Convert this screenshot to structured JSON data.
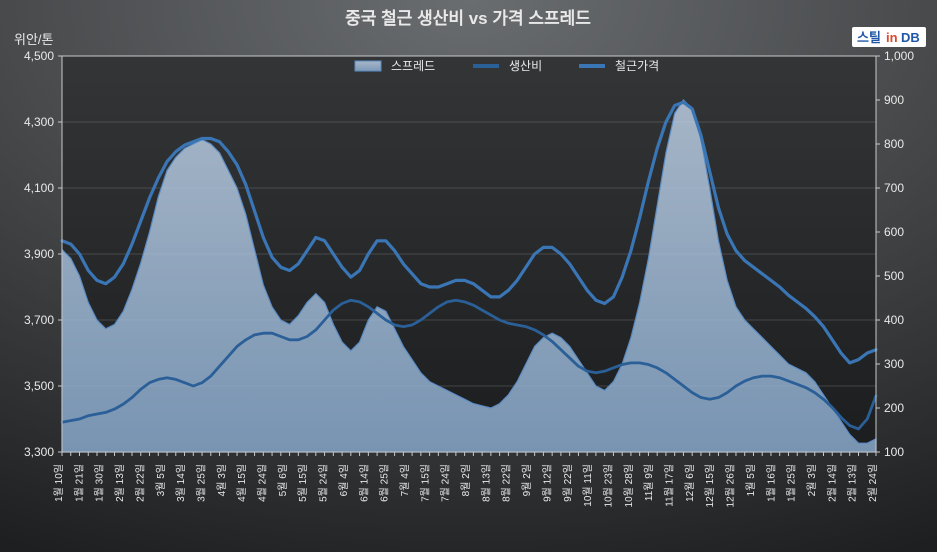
{
  "chart": {
    "type": "combo-area-line-dual-axis",
    "title": "중국 철근 생산비 vs 가격 스프레드",
    "y_left_label": "위안/톤",
    "background": {
      "outer_top": "#6a6d70",
      "outer_bottom": "#1e1f20",
      "plot_top": "#333537",
      "plot_bottom": "#1c1d1e"
    },
    "grid_color": "#9aa0a6",
    "axis_text_color": "#e9e9e9",
    "title_fontsize": 17,
    "tick_fontsize": 12,
    "y_left": {
      "min": 3300,
      "max": 4500,
      "step": 200
    },
    "y_right": {
      "min": 100,
      "max": 1000,
      "step": 100
    },
    "x_labels": [
      "1월 10일",
      "1월 21일",
      "1월 30일",
      "2월 13일",
      "2월 22일",
      "3월 5일",
      "3월 14일",
      "3월 25일",
      "4월 3일",
      "4월 15일",
      "4월 24일",
      "5월 6일",
      "5월 15일",
      "5월 24일",
      "6월 4일",
      "6월 14일",
      "6월 25일",
      "7월 4일",
      "7월 15일",
      "7월 24일",
      "8월 2일",
      "8월 13일",
      "8월 22일",
      "9월 2일",
      "9월 12일",
      "9월 22일",
      "10월 11일",
      "10월 23일",
      "10월 28일",
      "11월 9일",
      "11월 17일",
      "12월 6일",
      "12월 15일",
      "12월 26일",
      "1월 5일",
      "1월 16일",
      "1월 25일",
      "2월 3일",
      "2월 14일",
      "2월 13일",
      "2월 24일"
    ],
    "legend": {
      "items": [
        {
          "key": "spread",
          "label": "스프레드"
        },
        {
          "key": "cost",
          "label": "생산비"
        },
        {
          "key": "price",
          "label": "철근가격"
        }
      ]
    },
    "series": {
      "spread": {
        "type": "area",
        "axis": "right",
        "fill_top": "#c7daf0",
        "fill_bottom": "#92b6dc",
        "fill_opacity": 0.7,
        "stroke": "#5b8cc4",
        "stroke_width": 1.2,
        "data": [
          560,
          540,
          500,
          440,
          400,
          380,
          390,
          420,
          470,
          530,
          600,
          680,
          740,
          770,
          790,
          800,
          810,
          800,
          780,
          740,
          700,
          640,
          560,
          480,
          430,
          400,
          390,
          410,
          440,
          460,
          440,
          390,
          350,
          330,
          350,
          400,
          430,
          420,
          380,
          340,
          310,
          280,
          260,
          250,
          240,
          230,
          220,
          210,
          205,
          200,
          210,
          230,
          260,
          300,
          340,
          360,
          370,
          360,
          340,
          310,
          280,
          250,
          240,
          260,
          300,
          360,
          440,
          540,
          660,
          780,
          870,
          900,
          880,
          810,
          700,
          580,
          490,
          430,
          400,
          380,
          360,
          340,
          320,
          300,
          290,
          280,
          260,
          230,
          200,
          170,
          140,
          120,
          120,
          130
        ]
      },
      "cost": {
        "type": "line",
        "axis": "left",
        "stroke": "#2b5f97",
        "stroke_width": 2.8,
        "data": [
          3390,
          3395,
          3400,
          3410,
          3415,
          3420,
          3430,
          3445,
          3465,
          3490,
          3510,
          3520,
          3525,
          3520,
          3510,
          3500,
          3510,
          3530,
          3560,
          3590,
          3620,
          3640,
          3655,
          3660,
          3660,
          3650,
          3640,
          3640,
          3650,
          3670,
          3700,
          3730,
          3750,
          3760,
          3755,
          3740,
          3720,
          3700,
          3685,
          3680,
          3685,
          3700,
          3720,
          3740,
          3755,
          3760,
          3755,
          3745,
          3730,
          3715,
          3700,
          3690,
          3685,
          3680,
          3670,
          3655,
          3635,
          3610,
          3585,
          3560,
          3545,
          3540,
          3545,
          3555,
          3565,
          3570,
          3570,
          3565,
          3555,
          3540,
          3520,
          3500,
          3480,
          3465,
          3460,
          3465,
          3480,
          3500,
          3515,
          3525,
          3530,
          3530,
          3525,
          3515,
          3505,
          3495,
          3480,
          3460,
          3435,
          3405,
          3380,
          3370,
          3400,
          3470
        ]
      },
      "price": {
        "type": "line",
        "axis": "left",
        "stroke": "#3a76b5",
        "stroke_width": 3.2,
        "data": [
          3940,
          3930,
          3900,
          3850,
          3820,
          3810,
          3830,
          3870,
          3930,
          4000,
          4070,
          4130,
          4180,
          4210,
          4230,
          4240,
          4250,
          4250,
          4240,
          4210,
          4170,
          4110,
          4030,
          3950,
          3890,
          3860,
          3850,
          3870,
          3910,
          3950,
          3940,
          3900,
          3860,
          3830,
          3850,
          3900,
          3940,
          3940,
          3910,
          3870,
          3840,
          3810,
          3800,
          3800,
          3810,
          3820,
          3820,
          3810,
          3790,
          3770,
          3770,
          3790,
          3820,
          3860,
          3900,
          3920,
          3920,
          3900,
          3870,
          3830,
          3790,
          3760,
          3750,
          3770,
          3830,
          3910,
          4010,
          4120,
          4220,
          4300,
          4350,
          4360,
          4340,
          4260,
          4150,
          4040,
          3960,
          3910,
          3880,
          3860,
          3840,
          3820,
          3800,
          3775,
          3755,
          3735,
          3710,
          3680,
          3640,
          3600,
          3570,
          3580,
          3600,
          3610
        ]
      }
    },
    "logo": {
      "text_a": "스틸",
      "text_b": "in",
      "text_c": "DB",
      "color_a": "#1f57a6",
      "color_b": "#d94a2f",
      "color_c": "#1f57a6",
      "bg": "#ffffff"
    }
  }
}
